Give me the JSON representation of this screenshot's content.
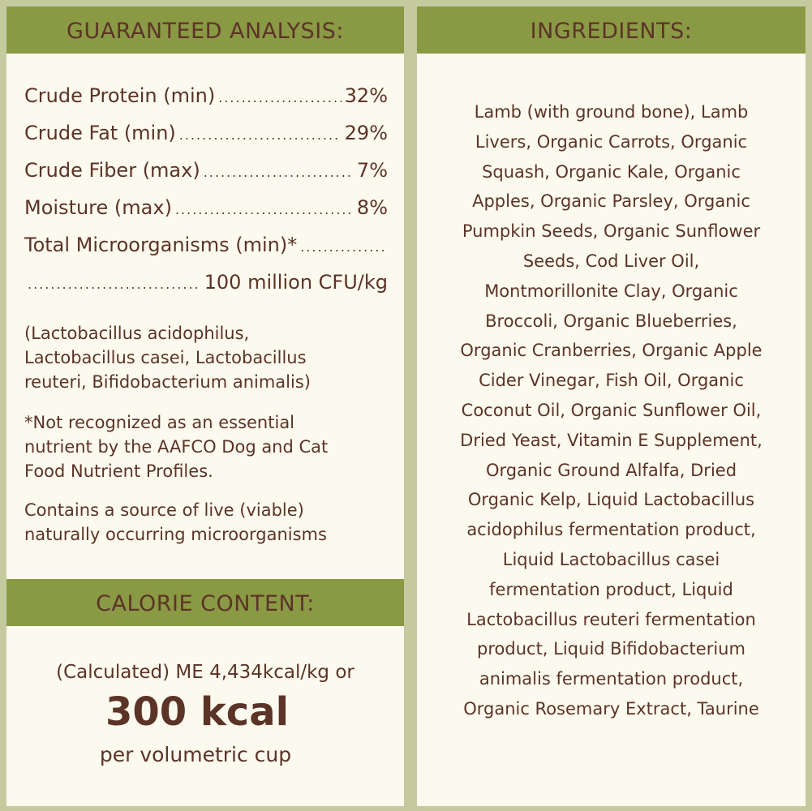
{
  "analysis": {
    "title": "GUARANTEED ANALYSIS:",
    "rows": [
      {
        "label": "Crude Protein (min)",
        "value": "32%"
      },
      {
        "label": "Crude Fat (min)",
        "value": "29%"
      },
      {
        "label": "Crude Fiber (max)",
        "value": "7%"
      },
      {
        "label": "Moisture (max)",
        "value": "8%"
      },
      {
        "label": "Total Microorganisms (min)*",
        "value": "100 million CFU/kg"
      }
    ],
    "strains": [
      "(Lactobacillus acidophilus,",
      "Lactobacillus casei, Lactobacillus",
      "reuteri, Bifidobacterium animalis)"
    ],
    "footnote": [
      "*Not recognized as an essential",
      "nutrient by the AAFCO Dog and Cat",
      "Food Nutrient Profiles."
    ],
    "live_note": [
      "Contains a source of live (viable)",
      "naturally occurring microorganisms"
    ]
  },
  "calorie": {
    "title": "CALORIE CONTENT:",
    "line1": "(Calculated) ME 4,434kcal/kg or",
    "big": "300 kcal",
    "line3": "per volumetric cup"
  },
  "ingredients": {
    "title": "INGREDIENTS:",
    "lines": [
      "Lamb (with ground bone), Lamb",
      "Livers, Organic Carrots, Organic",
      "Squash, Organic Kale, Organic",
      "Apples, Organic Parsley, Organic",
      "Pumpkin Seeds, Organic Sunflower",
      "Seeds, Cod Liver Oil,",
      "Montmorillonite Clay, Organic",
      "Broccoli, Organic Blueberries,",
      "Organic Cranberries, Organic Apple",
      "Cider Vinegar, Fish Oil, Organic",
      "Coconut Oil, Organic Sunflower Oil,",
      "Dried Yeast, Vitamin E Supplement,",
      "Organic Ground Alfalfa, Dried",
      "Organic Kelp, Liquid Lactobacillus",
      "acidophilus fermentation product,",
      "Liquid Lactobacillus casei",
      "fermentation product, Liquid",
      "Lactobacillus reuteri fermentation",
      "product, Liquid Bifidobacterium",
      "animalis fermentation product,",
      "Organic Rosemary Extract, Taurine"
    ]
  }
}
